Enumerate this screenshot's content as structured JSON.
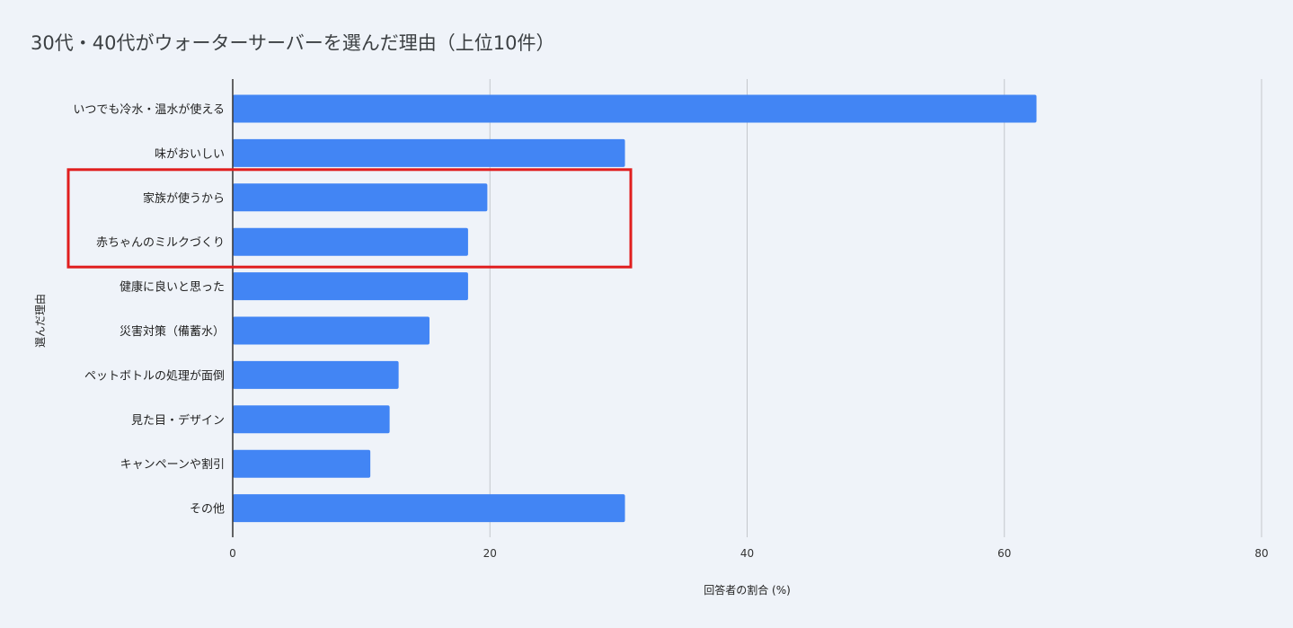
{
  "chart_data": {
    "type": "bar",
    "orientation": "horizontal",
    "title": "30代・40代がウォーターサーバーを選んだ理由（上位10件）",
    "xlabel": "回答者の割合 (%)",
    "ylabel": "選んだ理由",
    "categories": [
      "いつでも冷水・温水が使える",
      "味がおいしい",
      "家族が使うから",
      "赤ちゃんのミルクづくり",
      "健康に良いと思った",
      "災害対策（備蓄水）",
      "ペットボトルの処理が面倒",
      "見た目・デザイン",
      "キャンペーンや割引",
      "その他"
    ],
    "values": [
      62.5,
      30.5,
      19.8,
      18.3,
      18.3,
      15.3,
      12.9,
      12.2,
      10.7,
      30.5
    ],
    "xlim": [
      0,
      80
    ],
    "xticks": [
      0,
      20,
      40,
      60,
      80
    ],
    "grid": true,
    "legend": "none",
    "bar_color": "#4285f4",
    "highlight": {
      "categories": [
        "家族が使うから",
        "赤ちゃんのミルクづくり"
      ],
      "color": "#e01e1e"
    }
  }
}
